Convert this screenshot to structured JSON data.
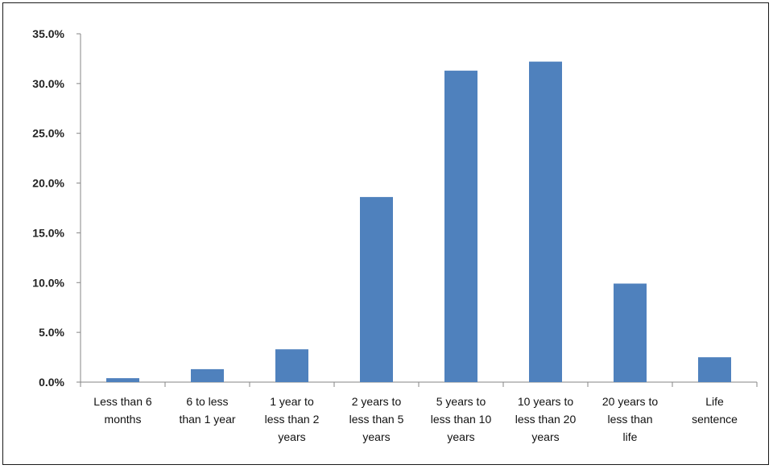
{
  "chart_data": {
    "type": "bar",
    "title": "",
    "xlabel": "",
    "ylabel": "",
    "categories": [
      [
        "Less than 6",
        "months"
      ],
      [
        "6 to less",
        "than 1 year"
      ],
      [
        "1 year to",
        "less than 2",
        "years"
      ],
      [
        "2 years to",
        "less than 5",
        "years"
      ],
      [
        "5 years to",
        "less than 10",
        "years"
      ],
      [
        "10 years to",
        "less than 20",
        "years"
      ],
      [
        "20 years to",
        "less than",
        "life"
      ],
      [
        "Life",
        "sentence"
      ]
    ],
    "values": [
      0.4,
      1.3,
      3.3,
      18.6,
      31.3,
      32.2,
      9.9,
      2.5
    ],
    "ylim": [
      0,
      35
    ],
    "yticks": [
      "0.0%",
      "5.0%",
      "10.0%",
      "15.0%",
      "20.0%",
      "25.0%",
      "30.0%",
      "35.0%"
    ],
    "bar_color": "#4f81bd",
    "grid": false,
    "legend": "none"
  }
}
